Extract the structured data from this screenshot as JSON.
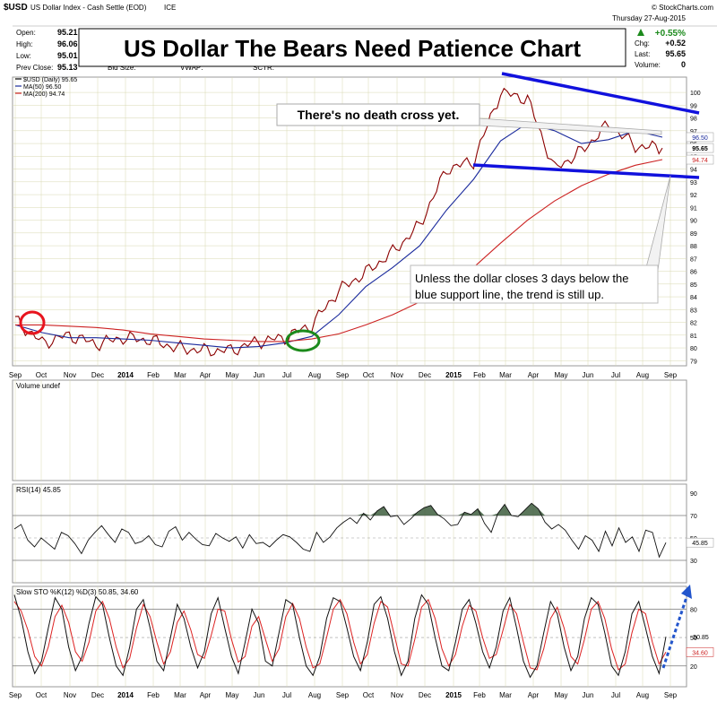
{
  "header": {
    "symbol": "$USD",
    "name": "US Dollar Index - Cash Settle (EOD)",
    "exchange": "ICE",
    "credit": "© StockCharts.com",
    "date": "Thursday  27-Aug-2015",
    "stats_left": [
      {
        "label": "Open:",
        "value": "95.21"
      },
      {
        "label": "High:",
        "value": "96.06"
      },
      {
        "label": "Low:",
        "value": "95.01"
      },
      {
        "label": "Prev Close:",
        "value": "95.13"
      }
    ],
    "bid_label": "Bid Size:",
    "vwap_label": "VWAP:",
    "sctr_label": "SCTR:",
    "change_pct": "+0.55%",
    "stats_right": [
      {
        "label": "Chg:",
        "value": "+0.52"
      },
      {
        "label": "Last:",
        "value": "95.65"
      },
      {
        "label": "Volume:",
        "value": "0"
      }
    ]
  },
  "title_box": "US Dollar The Bears Need Patience Chart",
  "annotations": {
    "death_cross": "There's no death cross yet.",
    "support_line1": "Unless the dollar closes 3 days below the",
    "support_line2": "blue support line, the trend is still up."
  },
  "colors": {
    "price": "#8b0000",
    "ma50": "#1a2a9c",
    "ma200": "#cc2222",
    "trendline": "#1111dd",
    "rsi_shade": "#3e5e3e",
    "up": "#1c8a1c",
    "grid": "#d8d8b0",
    "panel_bg": "#ffffff",
    "circle_red": "#e8141e",
    "circle_green": "#1b8a1b",
    "arrow": "#2255cc"
  },
  "chart_data": [
    {
      "type": "line",
      "panel": "price",
      "legend": [
        "$USD (Daily) 95.65",
        "MA(50) 96.50",
        "MA(200) 94.74"
      ],
      "x_ticks": [
        "Sep",
        "Oct",
        "Nov",
        "Dec",
        "2014",
        "Feb",
        "Mar",
        "Apr",
        "May",
        "Jun",
        "Jul",
        "Aug",
        "Sep",
        "Oct",
        "Nov",
        "Dec",
        "2015",
        "Feb",
        "Mar",
        "Apr",
        "May",
        "Jun",
        "Jul",
        "Aug",
        "Sep"
      ],
      "y_ticks": [
        79,
        80,
        81,
        82,
        83,
        84,
        85,
        86,
        87,
        88,
        89,
        90,
        91,
        92,
        93,
        94,
        95,
        96,
        97,
        98,
        99,
        100
      ],
      "ylim": [
        78.6,
        101.2
      ],
      "price_labels": [
        "96.50",
        "95.65",
        "94.74"
      ],
      "series": [
        {
          "name": "$USD (Daily)",
          "x": [
            "Sep 2013",
            "Oct 2013",
            "Nov 2013",
            "Dec 2013",
            "Jan 2014",
            "Feb 2014",
            "Mar 2014",
            "Apr 2014",
            "May 2014",
            "Jun 2014",
            "Jul 2014",
            "Aug 2014",
            "Sep 2014",
            "Oct 2014",
            "Nov 2014",
            "Dec 2014",
            "Jan 2015",
            "Feb 2015",
            "Mar 2015",
            "Apr 2015",
            "May 2015",
            "Jun 2015",
            "Jul 2015",
            "Aug 2015",
            "Aug 27 2015"
          ],
          "values": [
            82.2,
            80.4,
            81.0,
            80.3,
            80.8,
            80.6,
            80.0,
            79.8,
            79.8,
            80.5,
            80.8,
            81.8,
            84.5,
            85.9,
            87.5,
            89.6,
            94.0,
            94.6,
            100.0,
            99.5,
            94.0,
            95.4,
            97.5,
            95.8,
            95.65
          ]
        },
        {
          "name": "MA(50)",
          "x": [
            "Sep 2013",
            "Oct 2013",
            "Nov 2013",
            "Dec 2013",
            "Jan 2014",
            "Feb 2014",
            "Mar 2014",
            "Apr 2014",
            "May 2014",
            "Jun 2014",
            "Jul 2014",
            "Aug 2014",
            "Sep 2014",
            "Oct 2014",
            "Nov 2014",
            "Dec 2014",
            "Jan 2015",
            "Feb 2015",
            "Mar 2015",
            "Apr 2015",
            "May 2015",
            "Jun 2015",
            "Jul 2015",
            "Aug 2015",
            "Aug 27 2015"
          ],
          "values": [
            81.8,
            81.2,
            80.8,
            80.8,
            80.7,
            80.6,
            80.4,
            80.2,
            80.0,
            80.1,
            80.4,
            80.9,
            82.6,
            84.8,
            86.3,
            88.0,
            90.8,
            93.2,
            96.2,
            97.6,
            97.0,
            96.0,
            96.3,
            97.0,
            96.5
          ]
        },
        {
          "name": "MA(200)",
          "x": [
            "Sep 2013",
            "Oct 2013",
            "Nov 2013",
            "Dec 2013",
            "Jan 2014",
            "Feb 2014",
            "Mar 2014",
            "Apr 2014",
            "May 2014",
            "Jun 2014",
            "Jul 2014",
            "Aug 2014",
            "Sep 2014",
            "Oct 2014",
            "Nov 2014",
            "Dec 2014",
            "Jan 2015",
            "Feb 2015",
            "Mar 2015",
            "Apr 2015",
            "May 2015",
            "Jun 2015",
            "Jul 2015",
            "Aug 2015",
            "Aug 27 2015"
          ],
          "values": [
            81.8,
            81.8,
            81.7,
            81.6,
            81.4,
            81.1,
            80.9,
            80.7,
            80.6,
            80.5,
            80.5,
            80.7,
            81.1,
            81.8,
            82.6,
            83.6,
            84.9,
            86.3,
            88.2,
            90.0,
            91.5,
            92.7,
            93.6,
            94.3,
            94.74
          ]
        }
      ]
    },
    {
      "type": "line",
      "panel": "volume",
      "legend": [
        "Volume undef"
      ]
    },
    {
      "type": "area",
      "panel": "rsi",
      "legend": [
        "RSI(14) 45.85"
      ],
      "y_ticks": [
        30,
        50,
        70,
        90
      ],
      "levels": [
        30,
        70
      ],
      "ylim": [
        10,
        98
      ],
      "last": "45.85",
      "series": [
        {
          "name": "RSI(14)",
          "values": [
            58,
            62,
            48,
            42,
            50,
            45,
            40,
            55,
            52,
            45,
            36,
            48,
            55,
            61,
            53,
            46,
            58,
            55,
            45,
            47,
            52,
            44,
            42,
            56,
            60,
            48,
            55,
            49,
            44,
            43,
            54,
            50,
            47,
            51,
            41,
            53,
            45,
            46,
            42,
            48,
            53,
            51,
            46,
            40,
            38,
            55,
            46,
            51,
            59,
            64,
            68,
            63,
            72,
            66,
            74,
            78,
            69,
            70,
            62,
            67,
            73,
            77,
            79,
            71,
            67,
            61,
            62,
            73,
            71,
            76,
            63,
            55,
            72,
            80,
            70,
            69,
            75,
            81,
            76,
            64,
            58,
            62,
            57,
            48,
            40,
            52,
            48,
            38,
            56,
            43,
            59,
            46,
            51,
            38,
            57,
            55,
            33,
            45.85
          ]
        }
      ]
    },
    {
      "type": "line",
      "panel": "sto",
      "legend": [
        "Slow STO %K(12) %D(3) 50.85, 34.60"
      ],
      "y_ticks": [
        20,
        50,
        80
      ],
      "levels": [
        20,
        80
      ],
      "ylim": [
        -2,
        104
      ],
      "last_k": "50.85",
      "last_d": "34.60",
      "series": [
        {
          "name": "%K(12)",
          "values": [
            95,
            70,
            35,
            12,
            25,
            60,
            92,
            80,
            40,
            15,
            30,
            65,
            93,
            85,
            50,
            20,
            10,
            40,
            80,
            90,
            60,
            25,
            15,
            50,
            85,
            70,
            40,
            18,
            35,
            75,
            92,
            60,
            30,
            12,
            45,
            80,
            65,
            25,
            20,
            55,
            90,
            85,
            50,
            20,
            10,
            30,
            70,
            92,
            88,
            60,
            30,
            15,
            45,
            85,
            93,
            70,
            35,
            10,
            25,
            70,
            95,
            85,
            50,
            20,
            15,
            45,
            80,
            90,
            65,
            35,
            18,
            40,
            78,
            92,
            60,
            25,
            8,
            20,
            55,
            88,
            75,
            40,
            15,
            30,
            70,
            92,
            85,
            55,
            20,
            10,
            35,
            75,
            88,
            60,
            30,
            12,
            50.85
          ]
        },
        {
          "name": "%D(3)",
          "values": [
            88,
            78,
            58,
            30,
            20,
            40,
            72,
            84,
            66,
            35,
            25,
            45,
            78,
            88,
            70,
            40,
            18,
            28,
            60,
            85,
            72,
            45,
            22,
            35,
            66,
            78,
            58,
            32,
            28,
            52,
            80,
            78,
            48,
            24,
            30,
            62,
            72,
            48,
            25,
            38,
            72,
            86,
            70,
            40,
            18,
            22,
            50,
            80,
            90,
            75,
            45,
            22,
            32,
            65,
            88,
            82,
            52,
            22,
            20,
            48,
            82,
            90,
            70,
            38,
            20,
            32,
            62,
            84,
            78,
            50,
            28,
            32,
            58,
            85,
            75,
            45,
            18,
            16,
            38,
            70,
            82,
            60,
            30,
            22,
            48,
            80,
            88,
            70,
            38,
            16,
            22,
            55,
            80,
            75,
            45,
            22,
            34.6
          ]
        }
      ]
    },
    {
      "type": "line",
      "panel": "axis",
      "x_ticks_bottom": [
        "Sep",
        "Oct",
        "Nov",
        "Dec",
        "2014",
        "Feb",
        "Mar",
        "Apr",
        "May",
        "Jun",
        "Jul",
        "Aug",
        "Sep",
        "Oct",
        "Nov",
        "Dec",
        "2015",
        "Feb",
        "Mar",
        "Apr",
        "May",
        "Jun",
        "Jul",
        "Aug",
        "Sep"
      ]
    }
  ]
}
